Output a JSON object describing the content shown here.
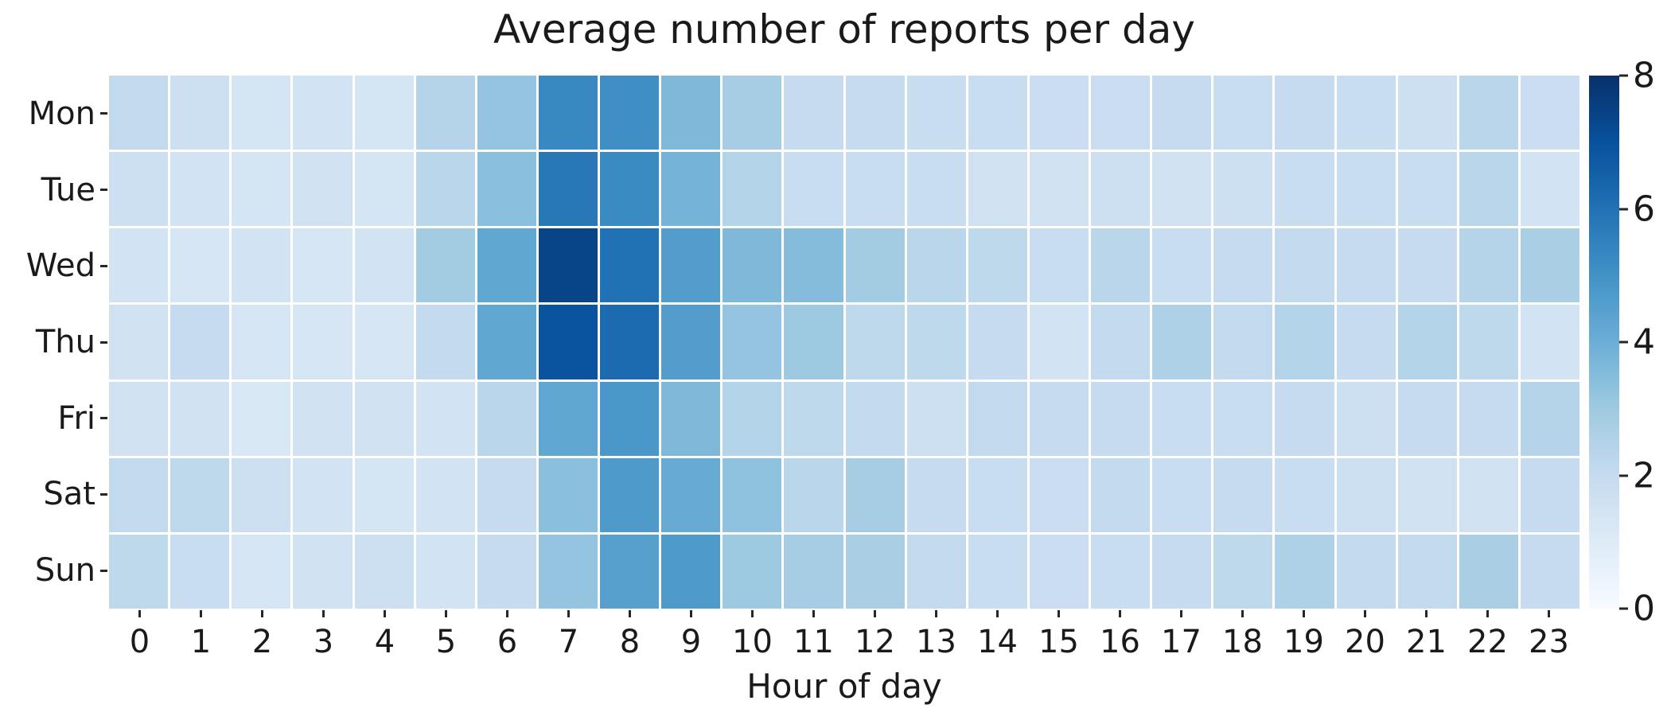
{
  "chart_data": {
    "type": "heatmap",
    "title": "Average number of reports per day",
    "xlabel": "Hour of day",
    "x_tick_labels": [
      "0",
      "1",
      "2",
      "3",
      "4",
      "5",
      "6",
      "7",
      "8",
      "9",
      "10",
      "11",
      "12",
      "13",
      "14",
      "15",
      "16",
      "17",
      "18",
      "19",
      "20",
      "21",
      "22",
      "23"
    ],
    "y_tick_labels": [
      "Mon",
      "Tue",
      "Wed",
      "Thu",
      "Fri",
      "Sat",
      "Sun"
    ],
    "vmin": 0,
    "vmax": 8,
    "colorbar_ticks": [
      0,
      2,
      4,
      6,
      8
    ],
    "colormap": {
      "name": "Blues",
      "stops": [
        "#f7fbff",
        "#deebf7",
        "#c6dbef",
        "#9ecae1",
        "#6baed6",
        "#4292c6",
        "#2171b5",
        "#08519c",
        "#08306b"
      ]
    },
    "grid_line_color": "#ffffff",
    "text_color": "#1a1a1a",
    "values": [
      [
        2.1,
        1.7,
        1.4,
        1.5,
        1.4,
        2.4,
        3.2,
        5.3,
        5.1,
        3.6,
        2.8,
        2.0,
        2.0,
        1.9,
        1.9,
        1.8,
        1.8,
        2.0,
        1.9,
        2.0,
        1.9,
        1.7,
        2.3,
        1.8
      ],
      [
        1.7,
        1.5,
        1.4,
        1.6,
        1.4,
        2.3,
        3.4,
        5.8,
        5.2,
        3.8,
        2.5,
        1.9,
        1.9,
        1.9,
        1.6,
        1.6,
        1.7,
        1.6,
        1.7,
        1.9,
        1.9,
        1.9,
        2.3,
        1.5
      ],
      [
        1.5,
        1.3,
        1.5,
        1.3,
        1.5,
        2.9,
        4.3,
        7.4,
        6.0,
        4.6,
        3.6,
        3.5,
        2.9,
        2.3,
        2.2,
        1.9,
        2.3,
        1.9,
        2.0,
        2.1,
        2.0,
        2.0,
        2.4,
        2.7
      ],
      [
        1.6,
        2.0,
        1.3,
        1.3,
        1.3,
        2.1,
        4.3,
        6.9,
        6.2,
        4.6,
        3.2,
        3.0,
        2.2,
        2.2,
        2.0,
        1.5,
        2.1,
        2.6,
        2.1,
        2.5,
        2.0,
        2.5,
        2.2,
        1.5
      ],
      [
        1.6,
        1.6,
        1.2,
        1.6,
        1.6,
        1.5,
        2.3,
        4.3,
        4.8,
        3.6,
        2.5,
        2.2,
        2.1,
        1.7,
        2.1,
        2.0,
        2.0,
        1.9,
        1.9,
        2.0,
        1.7,
        2.0,
        2.0,
        2.4
      ],
      [
        2.1,
        2.2,
        1.7,
        1.5,
        1.4,
        1.5,
        2.0,
        3.4,
        4.7,
        4.1,
        3.3,
        2.3,
        2.8,
        2.0,
        1.9,
        1.8,
        2.1,
        1.9,
        2.0,
        1.9,
        1.7,
        1.6,
        1.6,
        2.0
      ],
      [
        2.2,
        1.9,
        1.3,
        1.6,
        1.7,
        1.5,
        2.0,
        3.2,
        4.5,
        4.7,
        3.0,
        2.8,
        2.7,
        2.1,
        1.9,
        1.8,
        1.9,
        2.0,
        2.2,
        2.6,
        2.1,
        2.1,
        2.7,
        2.0
      ]
    ]
  }
}
